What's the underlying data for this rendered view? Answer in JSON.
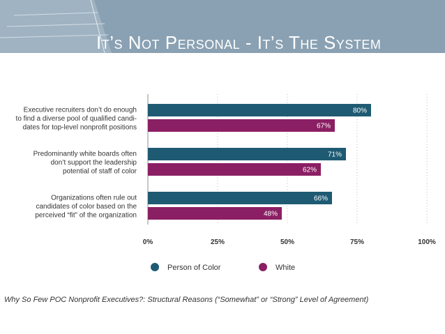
{
  "slide": {
    "title": "It’s Not Personal - It’s The System",
    "caption": "Why So Few POC Nonprofit Executives?: Structural Reasons (“Somewhat” or “Strong” Level of Agreement)"
  },
  "colors": {
    "header_band": "#8aa1b3",
    "person_of_color": "#1f5a73",
    "white": "#8b1f64",
    "axis_text": "#333333"
  },
  "chart_data": {
    "type": "bar",
    "orientation": "horizontal",
    "title": "",
    "xlabel": "",
    "ylabel": "",
    "xlim": [
      0,
      100
    ],
    "value_suffix": "%",
    "ticks": [
      "0%",
      "25%",
      "50%",
      "75%",
      "100%"
    ],
    "grid": true,
    "legend_position": "bottom",
    "categories": [
      [
        "Executive recruiters don’t do enough",
        "to find a diverse pool of qualified candi-",
        "dates for top-level nonprofit positions"
      ],
      [
        "Predominantly white boards often",
        "don’t support the leadership",
        "potential of staff of color"
      ],
      [
        "Organizations often rule out",
        "candidates of color based on the",
        "perceived “fit” of the organization"
      ]
    ],
    "series": [
      {
        "name": "Person of Color",
        "color": "#1f5a73",
        "values": [
          80,
          71,
          66
        ]
      },
      {
        "name": "White",
        "color": "#8b1f64",
        "values": [
          67,
          62,
          48
        ]
      }
    ]
  }
}
